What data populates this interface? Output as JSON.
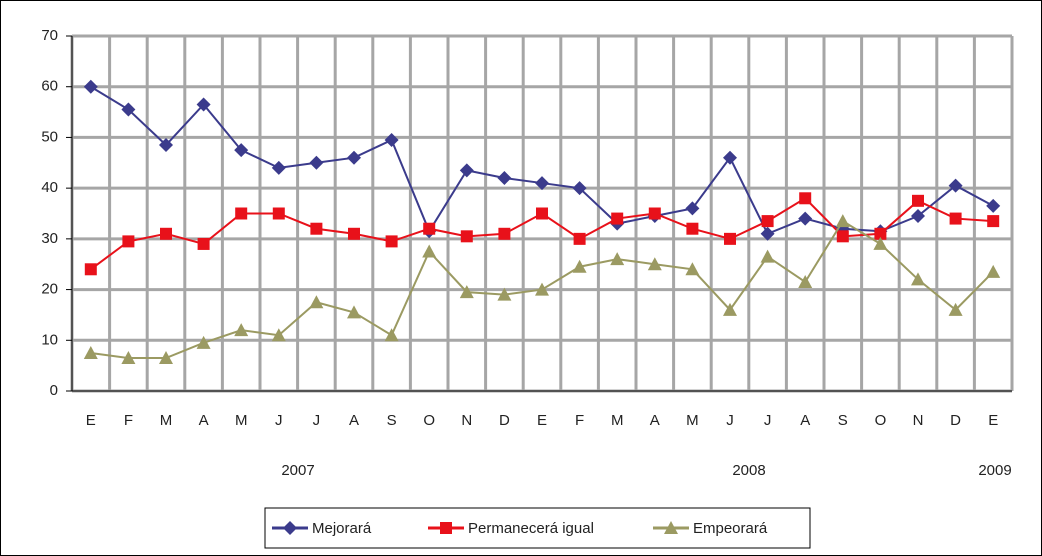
{
  "chart_data": {
    "type": "line",
    "categories": [
      "E",
      "F",
      "M",
      "A",
      "M",
      "J",
      "J",
      "A",
      "S",
      "O",
      "N",
      "D",
      "E",
      "F",
      "M",
      "A",
      "M",
      "J",
      "J",
      "A",
      "S",
      "O",
      "N",
      "D",
      "E"
    ],
    "annotations": [
      "2007",
      "2008",
      "2009"
    ],
    "ylim": [
      0,
      70
    ],
    "yticks": [
      0,
      10,
      20,
      30,
      40,
      50,
      60,
      70
    ],
    "grid": true,
    "legend": "bottom",
    "series": [
      {
        "name": "Mejorará",
        "color": "#3b3b8c",
        "marker": "diamond",
        "values": [
          60,
          55.5,
          48.5,
          56.5,
          47.5,
          44,
          45,
          46,
          49.5,
          31.5,
          43.5,
          42,
          41,
          40,
          33,
          34.5,
          36,
          46,
          31,
          34,
          32,
          31.5,
          34.5,
          40.5,
          36.5
        ]
      },
      {
        "name": "Permanecerá igual",
        "color": "#e8111a",
        "marker": "square",
        "values": [
          24,
          29.5,
          31,
          29,
          35,
          35,
          32,
          31,
          29.5,
          32,
          30.5,
          31,
          35,
          30,
          34,
          35,
          32,
          30,
          33.5,
          38,
          30.5,
          31,
          37.5,
          34,
          33.5
        ]
      },
      {
        "name": "Empeorará",
        "color": "#9b9a62",
        "marker": "triangle",
        "values": [
          7.5,
          6.5,
          6.5,
          9.5,
          12,
          11,
          17.5,
          15.5,
          11,
          27.5,
          19.5,
          19,
          20,
          24.5,
          26,
          25,
          24,
          16,
          26.5,
          21.5,
          33.5,
          29,
          22,
          16,
          23.5
        ]
      }
    ]
  }
}
